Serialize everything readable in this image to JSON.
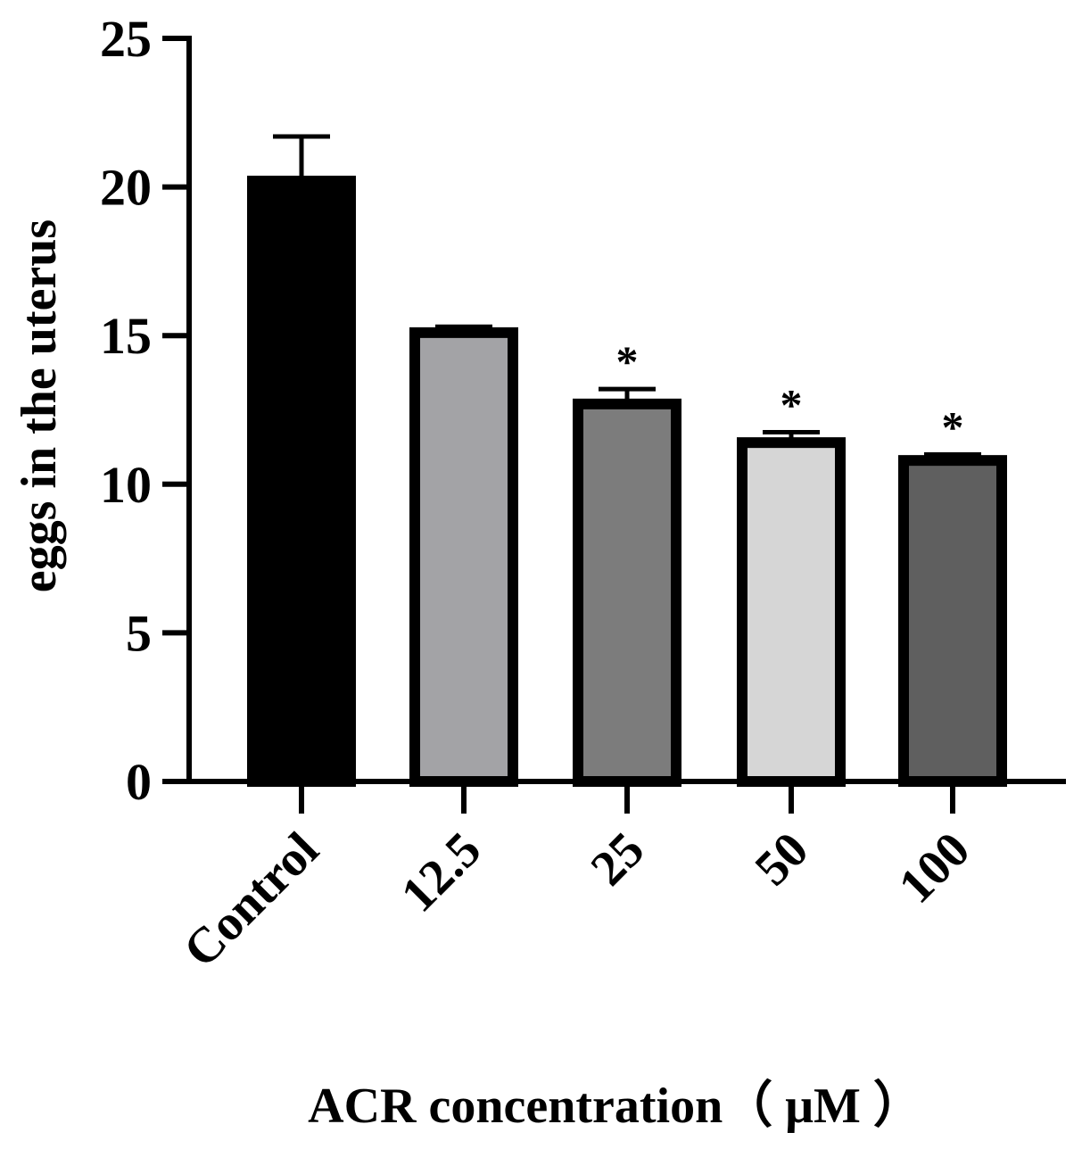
{
  "chart_data": {
    "type": "bar",
    "title": "",
    "xlabel": "ACR concentration（ μM ）",
    "ylabel": "eggs in the uterus",
    "ylim": [
      0,
      25
    ],
    "yticks": [
      "0",
      "5",
      "10",
      "15",
      "20",
      "25"
    ],
    "categories": [
      "Control",
      "12.5",
      "25",
      "50",
      "100"
    ],
    "values": [
      20.2,
      15.1,
      12.7,
      11.4,
      10.8
    ],
    "errors": [
      1.5,
      0.2,
      0.5,
      0.35,
      0.2
    ],
    "significance": [
      "",
      "",
      "*",
      "*",
      "*"
    ],
    "bar_colors": [
      "#000000",
      "#a3a3a6",
      "#7c7c7c",
      "#d6d6d6",
      "#5f5f5f"
    ],
    "grid": false,
    "legend": "none"
  }
}
